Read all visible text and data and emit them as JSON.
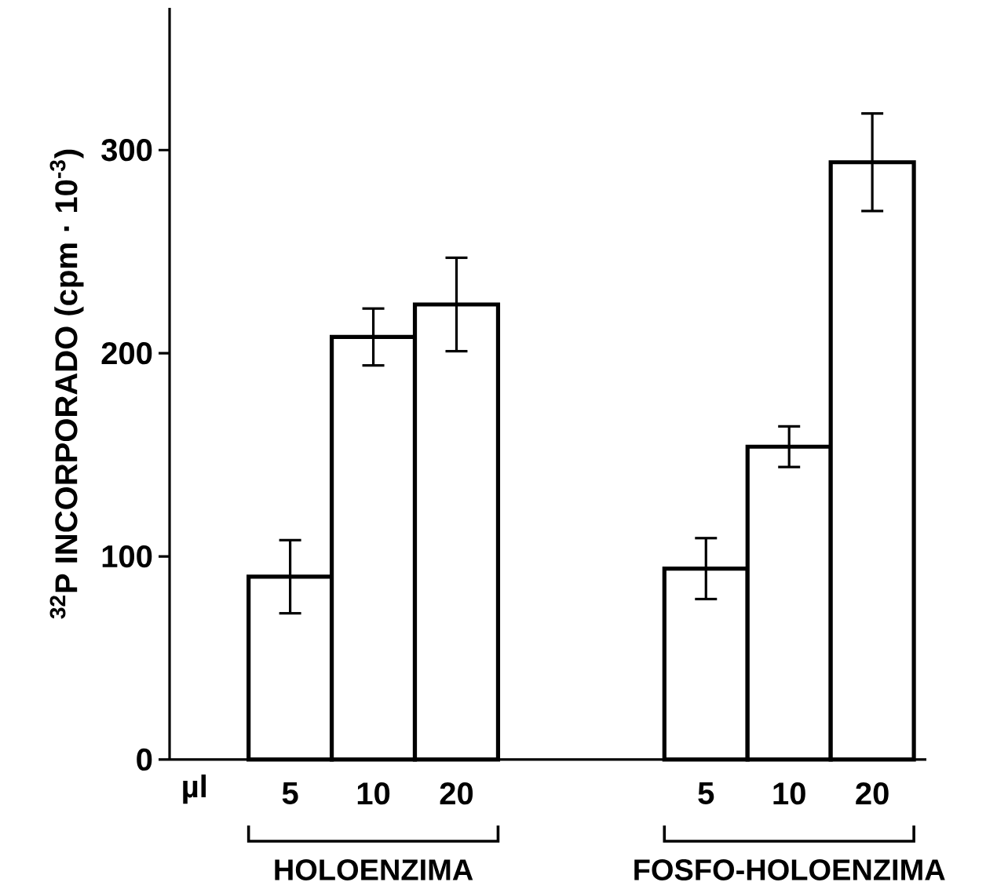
{
  "chart_data": {
    "type": "bar",
    "ylabel": "$^{32}$P INCORPORADO (cpm · 10$^{-3}$)",
    "xlabel": "µl",
    "categories": [
      "5",
      "10",
      "20",
      null,
      null,
      "5",
      "10",
      "20"
    ],
    "values": [
      90,
      208,
      224,
      null,
      null,
      94,
      154,
      294
    ],
    "errors": [
      18,
      14,
      23,
      null,
      null,
      15,
      10,
      24
    ],
    "color": "#000000",
    "ylim": [
      0,
      370
    ],
    "yticks": [
      0,
      100,
      200,
      300
    ],
    "annotations": [
      "HOLOENZIMA",
      "FOSFO-HOLOENZIMA"
    ]
  }
}
